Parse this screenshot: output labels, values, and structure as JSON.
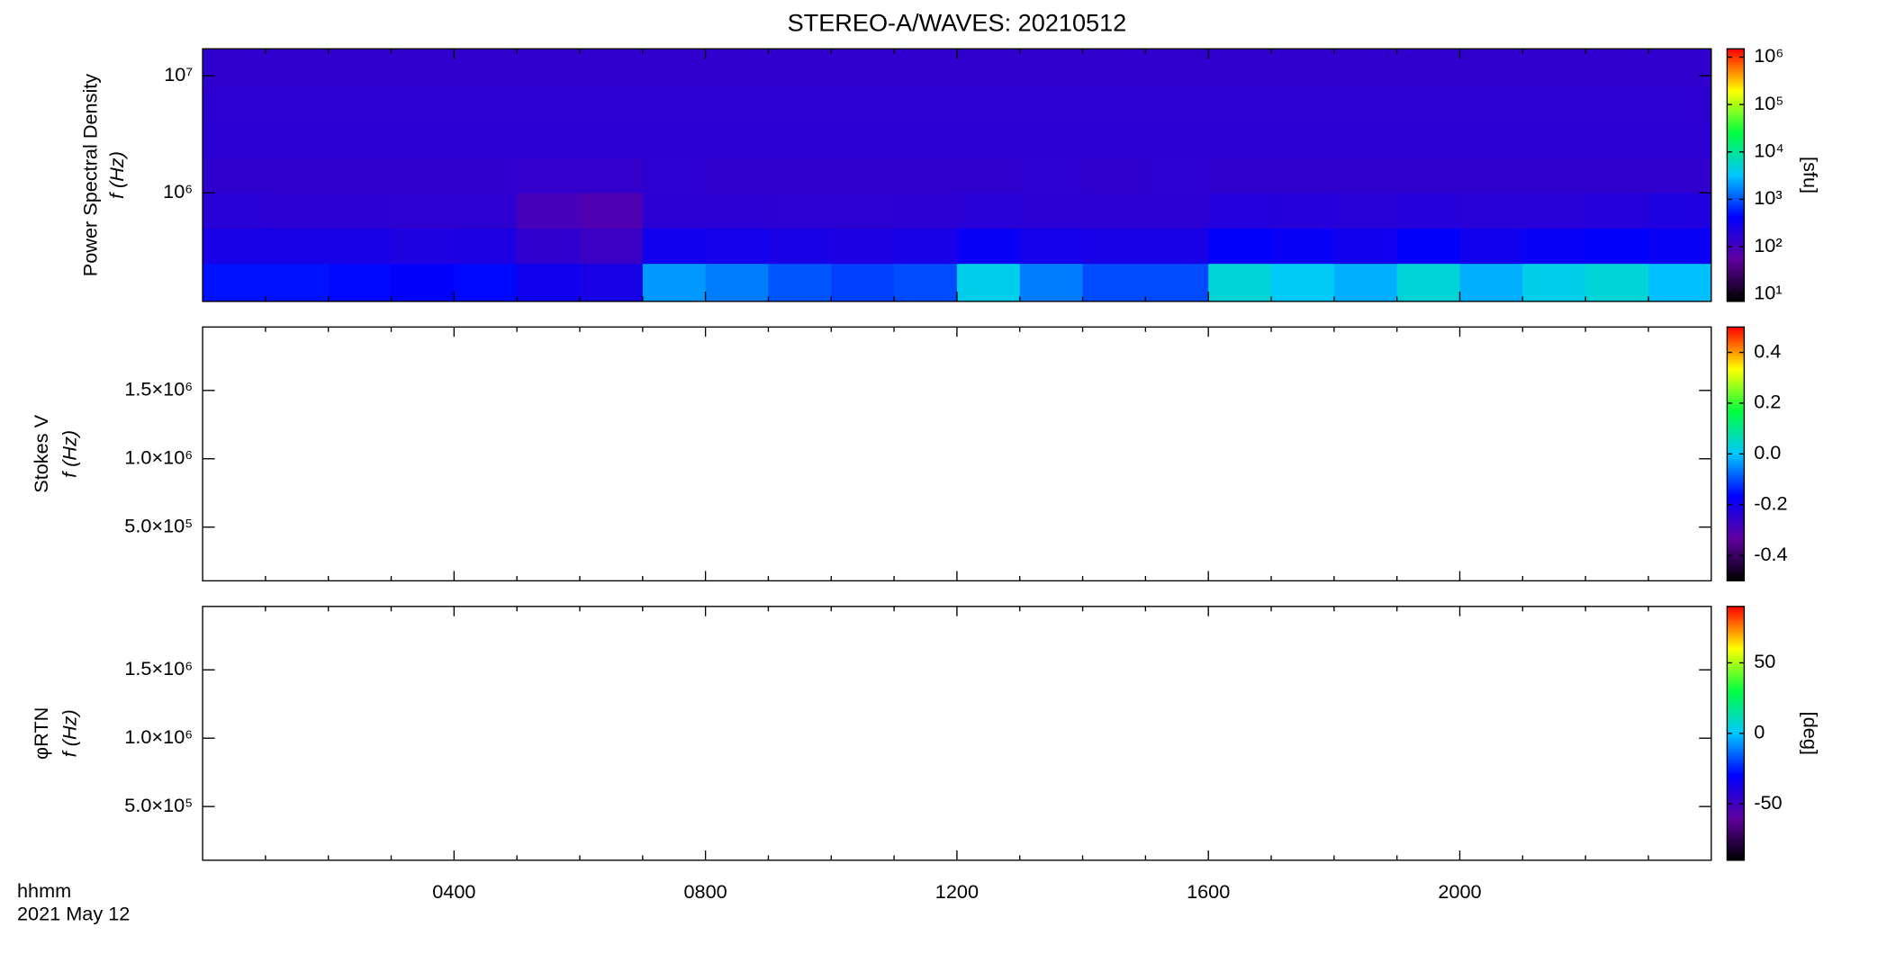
{
  "title": "STEREO-A/WAVES: 20210512",
  "x_axis": {
    "label": "hhmm",
    "date": "2021 May 12",
    "xlim": [
      0,
      24
    ],
    "xticks": [
      {
        "value": 4,
        "label": "0400"
      },
      {
        "value": 8,
        "label": "0800"
      },
      {
        "value": 12,
        "label": "1200"
      },
      {
        "value": 16,
        "label": "1600"
      },
      {
        "value": 20,
        "label": "2000"
      }
    ],
    "xminor_ticks": [
      1,
      2,
      3,
      5,
      6,
      7,
      9,
      10,
      11,
      13,
      14,
      15,
      17,
      18,
      19,
      21,
      22,
      23
    ]
  },
  "chart_data": [
    {
      "type": "heatmap",
      "ylabel": "Power Spectral Density",
      "ylabel2": "f (Hz)",
      "ylog": true,
      "ylim": [
        118000,
        17000000
      ],
      "yticks": [
        {
          "value": 1000000,
          "label": "10⁶"
        },
        {
          "value": 10000000,
          "label": "10⁷"
        }
      ],
      "time_bins": [
        0,
        1,
        2,
        3,
        4,
        5,
        6,
        7,
        8,
        9,
        10,
        11,
        12,
        13,
        14,
        15,
        16,
        17,
        18,
        19,
        20,
        21,
        22,
        23,
        24
      ],
      "freq_bins": [
        118000,
        250000,
        500000,
        1000000,
        2000000,
        4000000,
        8000000,
        17000000
      ],
      "values": [
        [
          500,
          500,
          450,
          400,
          450,
          300,
          250,
          2000,
          1500,
          1000,
          800,
          900,
          4000,
          1500,
          900,
          900,
          5000,
          3500,
          2500,
          5000,
          2500,
          4000,
          5000,
          3000
        ],
        [
          250,
          250,
          250,
          220,
          230,
          150,
          120,
          300,
          280,
          250,
          230,
          250,
          350,
          280,
          250,
          250,
          400,
          350,
          300,
          400,
          300,
          350,
          400,
          350
        ],
        [
          180,
          170,
          170,
          160,
          160,
          90,
          80,
          170,
          170,
          160,
          160,
          170,
          180,
          170,
          170,
          170,
          200,
          190,
          180,
          190,
          180,
          180,
          190,
          220
        ],
        [
          150,
          150,
          150,
          150,
          150,
          140,
          140,
          160,
          150,
          150,
          150,
          150,
          150,
          160,
          150,
          160,
          150,
          150,
          150,
          150,
          150,
          150,
          150,
          150
        ],
        [
          170,
          170,
          170,
          170,
          170,
          170,
          170,
          170,
          170,
          170,
          170,
          170,
          170,
          170,
          170,
          170,
          170,
          170,
          170,
          170,
          170,
          170,
          170,
          170
        ],
        [
          160,
          160,
          160,
          160,
          160,
          160,
          160,
          160,
          160,
          160,
          160,
          160,
          160,
          160,
          160,
          160,
          160,
          160,
          160,
          160,
          160,
          160,
          160,
          160
        ],
        [
          150,
          150,
          150,
          150,
          150,
          150,
          150,
          150,
          150,
          150,
          150,
          150,
          150,
          150,
          150,
          150,
          150,
          150,
          150,
          150,
          150,
          150,
          150,
          150
        ]
      ],
      "colorbar": {
        "lim": [
          7,
          1500000
        ],
        "log": true,
        "label": "[sfu]",
        "ticks": [
          {
            "value": 10,
            "label": "10¹"
          },
          {
            "value": 100,
            "label": "10²"
          },
          {
            "value": 1000,
            "label": "10³"
          },
          {
            "value": 10000,
            "label": "10⁴"
          },
          {
            "value": 100000,
            "label": "10⁵"
          },
          {
            "value": 1000000,
            "label": "10⁶"
          }
        ]
      },
      "colormap": [
        "#000000",
        "#6000a0",
        "#0000ff",
        "#00c8ff",
        "#00ff40",
        "#ffff00",
        "#ff0000"
      ]
    },
    {
      "type": "heatmap",
      "ylabel": "Stokes V",
      "ylabel2": "f (Hz)",
      "ylog": false,
      "ylim": [
        107000,
        1964000
      ],
      "yticks": [
        {
          "value": 500000,
          "label": "5.0×10⁵"
        },
        {
          "value": 1000000,
          "label": "1.0×10⁶"
        },
        {
          "value": 1500000,
          "label": "1.5×10⁶"
        }
      ],
      "colorbar": {
        "lim": [
          -0.5,
          0.5
        ],
        "log": false,
        "ticks": [
          -0.4,
          -0.2,
          {
            "value": 0,
            "label": "0.0"
          },
          0.2,
          0.4
        ]
      },
      "colormap": [
        "#000000",
        "#6000a0",
        "#0000ff",
        "#00c8ff",
        "#00ff40",
        "#ffff00",
        "#ff0000"
      ]
    },
    {
      "type": "heatmap",
      "ylabel": "φRTN",
      "ylabel2": "f (Hz)",
      "ylog": false,
      "ylim": [
        107000,
        1964000
      ],
      "yticks": [
        {
          "value": 500000,
          "label": "5.0×10⁵"
        },
        {
          "value": 1000000,
          "label": "1.0×10⁶"
        },
        {
          "value": 1500000,
          "label": "1.5×10⁶"
        }
      ],
      "colorbar": {
        "lim": [
          -90,
          90
        ],
        "log": false,
        "label": "[deg]",
        "ticks": [
          -50,
          0,
          50
        ]
      },
      "colormap": [
        "#000000",
        "#6000a0",
        "#0000ff",
        "#00c8ff",
        "#00ff40",
        "#ffff00",
        "#ff0000"
      ]
    }
  ]
}
